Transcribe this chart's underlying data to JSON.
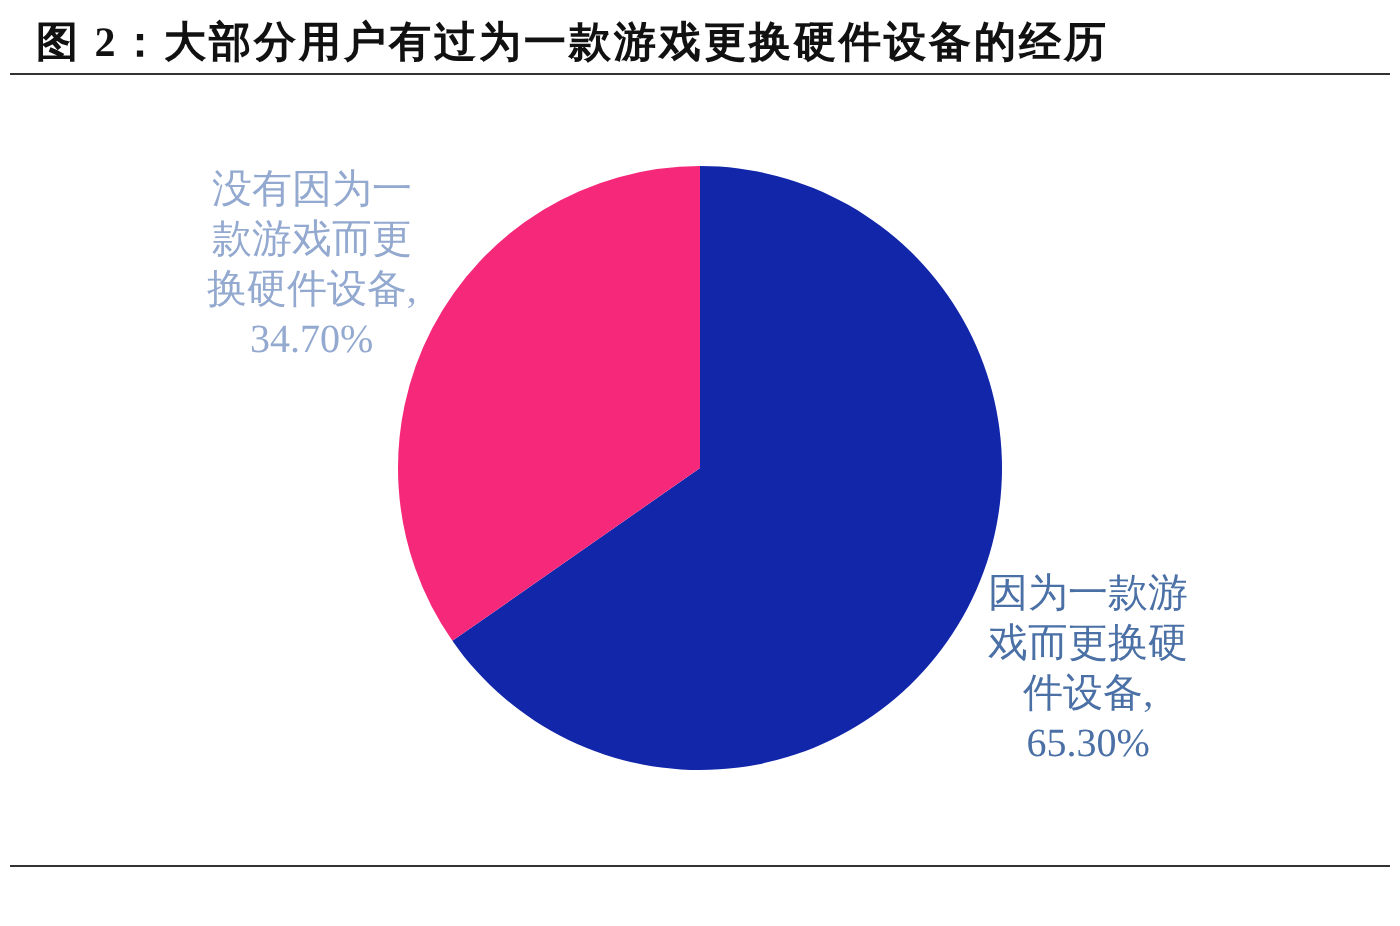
{
  "chart_data": {
    "type": "pie",
    "title": "图 2：大部分用户有过为一款游戏更换硬件设备的经历",
    "categories": [
      "因为一款游戏而更换硬件设备",
      "没有因为一款游戏而更换硬件设备"
    ],
    "values": [
      65.3,
      34.7
    ],
    "colors": [
      "#1226a9",
      "#f6287a"
    ],
    "value_labels": [
      ", 65.30%",
      ", 34.70%"
    ]
  }
}
